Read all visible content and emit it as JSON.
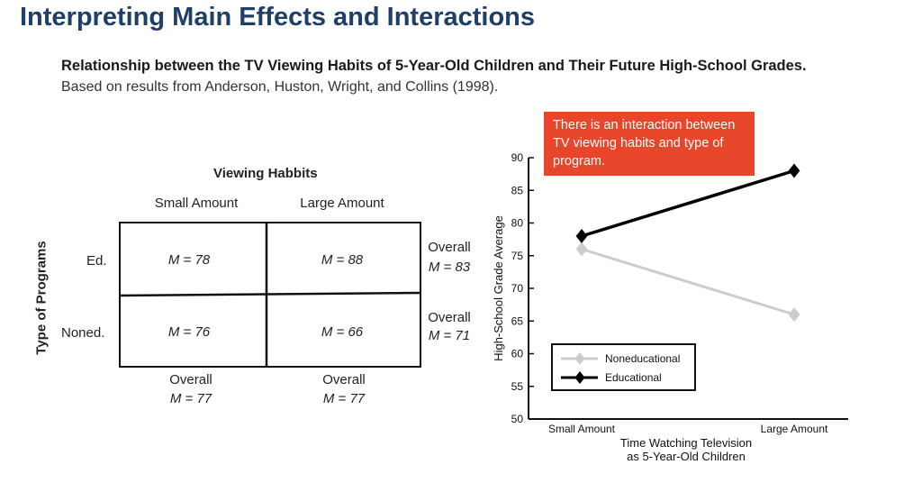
{
  "page": {
    "title": "Interpreting Main Effects and Interactions",
    "figure_title": "Relationship between the TV Viewing Habits of 5-Year-Old Children and Their Future High-School Grades.",
    "figure_source": "Based on results from Anderson, Huston, Wright, and Collins (1998)."
  },
  "table": {
    "col_header": "Viewing Habbits",
    "col_labels": [
      "Small Amount",
      "Large Amount"
    ],
    "row_header": "Type of Programs",
    "row_labels": [
      "Ed.",
      "Noned."
    ],
    "cells": [
      [
        "M = 78",
        "M = 88"
      ],
      [
        "M = 76",
        "M = 66"
      ]
    ],
    "row_overall": [
      {
        "word": "Overall",
        "value": "M = 83"
      },
      {
        "word": "Overall",
        "value": "M = 71"
      }
    ],
    "col_overall": [
      {
        "word": "Overall",
        "value": "M = 77"
      },
      {
        "word": "Overall",
        "value": "M = 77"
      }
    ]
  },
  "callout": {
    "text": "There is an interaction between TV viewing habits and type of program.",
    "color": "#e8462a"
  },
  "chart_data": {
    "type": "line",
    "categories": [
      "Small Amount",
      "Large Amount"
    ],
    "series": [
      {
        "name": "Noneducational",
        "values": [
          76,
          66
        ],
        "color": "#cccccc"
      },
      {
        "name": "Educational",
        "values": [
          78,
          88
        ],
        "color": "#000000"
      }
    ],
    "xlabel_lines": [
      "Time Watching Television",
      "as 5-Year-Old Children"
    ],
    "ylabel": "High-School Grade Average",
    "ylim": [
      50,
      90
    ],
    "yticks": [
      50,
      55,
      60,
      65,
      70,
      75,
      80,
      85,
      90
    ],
    "grid": false,
    "legend_position": "bottom-left"
  }
}
